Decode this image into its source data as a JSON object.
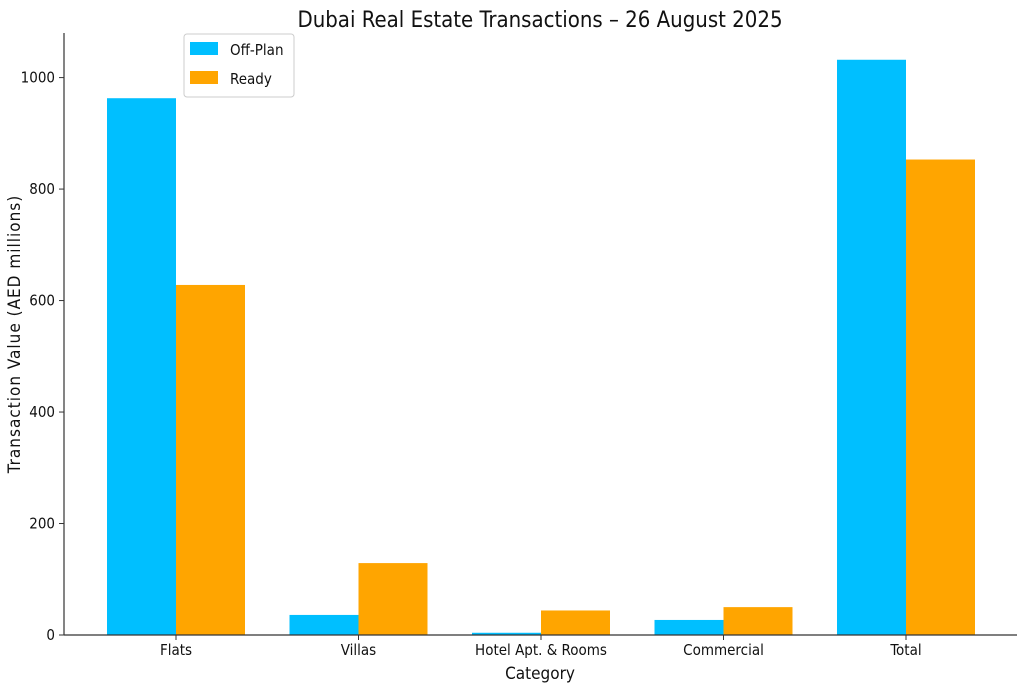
{
  "chart_data": {
    "type": "bar",
    "title": "Dubai Real Estate Transactions – 26 August 2025",
    "xlabel": "Category",
    "ylabel": "Transaction Value (AED millions)",
    "categories": [
      "Flats",
      "Villas",
      "Hotel Apt. & Rooms",
      "Commercial",
      "Total"
    ],
    "series": [
      {
        "name": "Off-Plan",
        "color": "#00BFFF",
        "values": [
          963,
          36,
          4,
          27,
          1032
        ]
      },
      {
        "name": "Ready",
        "color": "#FFA500",
        "values": [
          628,
          129,
          44,
          50,
          853
        ]
      }
    ],
    "ylim": [
      0,
      1080
    ],
    "yticks": [
      0,
      200,
      400,
      600,
      800,
      1000
    ],
    "legend_position": "top-left",
    "grid": false
  }
}
